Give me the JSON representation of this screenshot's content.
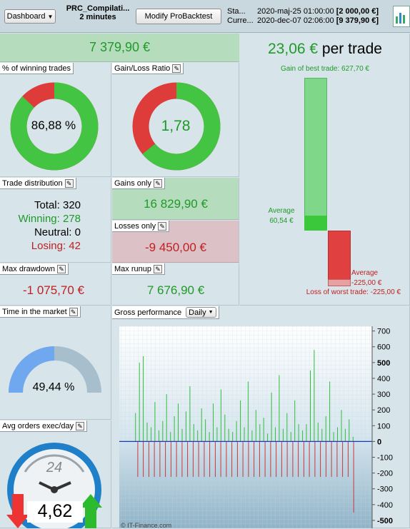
{
  "toolbar": {
    "dashboard_select": "Dashboard",
    "system_name": "PRC_Compilati...",
    "duration": "2 minutes",
    "modify_button": "Modify ProBacktest",
    "start_label": "Sta...",
    "start_date": "2020-maj-25 01:00:00",
    "start_value": "[2 000,00 €]",
    "current_label": "Curre...",
    "current_date": "2020-dec-07 02:06:00",
    "current_value": "[9 379,90 €]"
  },
  "summary": {
    "total_gain": "7 379,90 €"
  },
  "winning": {
    "title": "% of winning trades",
    "value": "86,88 %",
    "fraction": 0.8688
  },
  "ratio": {
    "title": "Gain/Loss Ratio",
    "value": "1,78",
    "fraction": 0.64
  },
  "per_trade": {
    "value": "23,06 €",
    "suffix": "per trade",
    "best_label": "Gain of best trade: 627,70 €",
    "avg_gain_label": "Average",
    "avg_gain_value": "60,54 €",
    "avg_loss_label": "Average",
    "avg_loss_value": "-225,00 €",
    "worst_label": "Loss of worst trade: -225,00 €",
    "best": 627.7,
    "avg_gain": 60.54,
    "avg_loss": -225.0,
    "worst": -225.0
  },
  "distribution": {
    "title": "Trade distribution",
    "total": "Total: 320",
    "winning": "Winning: 278",
    "neutral": "Neutral: 0",
    "losing": "Losing: 42"
  },
  "gains": {
    "title": "Gains only",
    "value": "16 829,90 €"
  },
  "losses": {
    "title": "Losses only",
    "value": "-9 450,00 €"
  },
  "drawdown": {
    "title": "Max drawdown",
    "value": "-1 075,70 €"
  },
  "runup": {
    "title": "Max runup",
    "value": "7 676,90 €"
  },
  "market": {
    "title": "Time in the market",
    "value": "49,44 %",
    "fraction": 0.4944
  },
  "orders": {
    "title": "Avg orders exec/day",
    "value": "4,62",
    "dial": "24"
  },
  "gross": {
    "title": "Gross performance",
    "period": "Daily",
    "watermark": "© IT-Finance.com"
  },
  "chart_data": {
    "type": "bar",
    "title": "Gross performance",
    "ylim": [
      -550,
      730
    ],
    "yticks": [
      "700",
      "600",
      "500",
      "400",
      "300",
      "200",
      "100",
      "0",
      "-100",
      "-200",
      "-300",
      "-400",
      "-500"
    ],
    "series": [
      {
        "name": "gains",
        "color": "#2fbf3a",
        "values": [
          180,
          500,
          540,
          120,
          90,
          250,
          70,
          130,
          300,
          60,
          160,
          240,
          80,
          190,
          350,
          110,
          70,
          210,
          140,
          60,
          240,
          90,
          330,
          170,
          80,
          60,
          130,
          260,
          90,
          380,
          70,
          200,
          110,
          150,
          50,
          310,
          90,
          420,
          80,
          180,
          60,
          260,
          110,
          70,
          110,
          450,
          580,
          120,
          80,
          160,
          380,
          60,
          90,
          200,
          80,
          140,
          30
        ]
      },
      {
        "name": "losses",
        "color": "#c9373f",
        "values": [
          -225,
          -225,
          -225,
          -225,
          -225,
          -225,
          -225,
          -225,
          -225,
          -225,
          -225,
          -225,
          -225,
          -225,
          -225,
          -225,
          -225,
          -225,
          -225,
          -225,
          -225,
          -225,
          -225,
          -225,
          -225,
          -225,
          -225,
          -225,
          -225,
          -225,
          -225,
          -225,
          -225,
          -225,
          -225,
          -225,
          -225,
          -225,
          -225,
          -450
        ]
      }
    ]
  },
  "colors": {
    "gain": "#43c543",
    "loss": "#de3b3b",
    "accent": "#1f9a27"
  }
}
